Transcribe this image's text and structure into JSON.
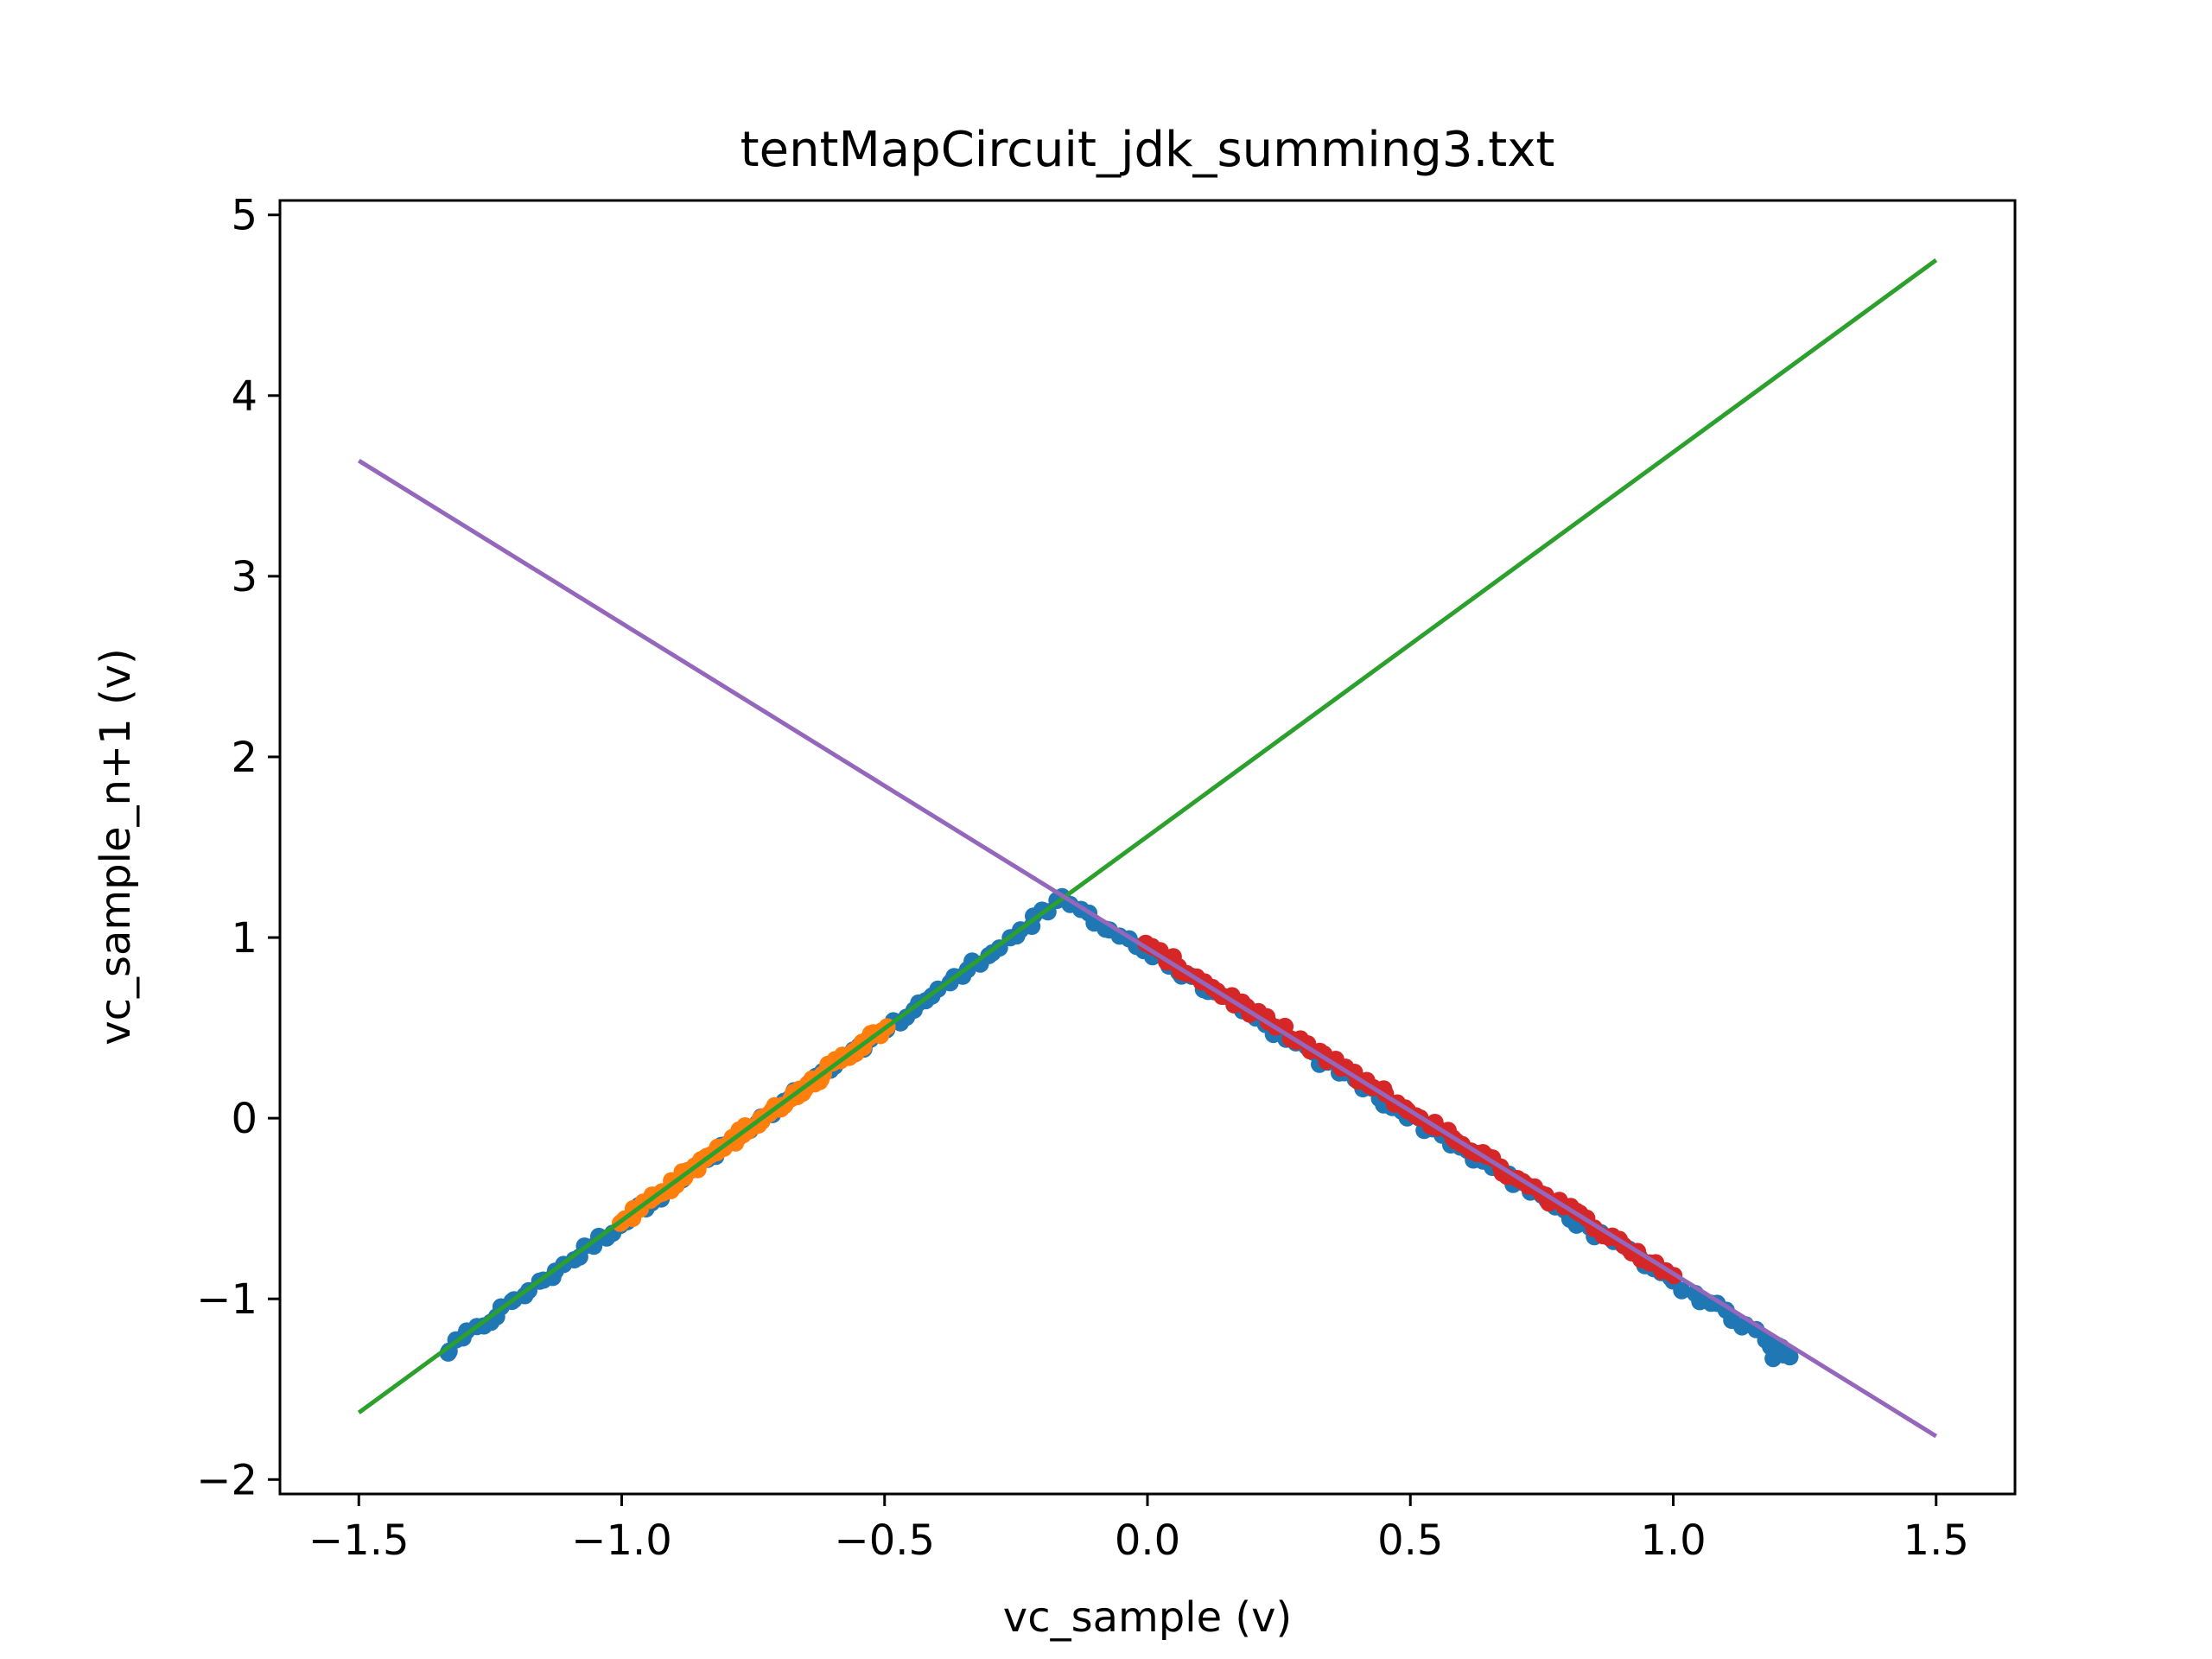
{
  "chart_data": {
    "type": "scatter",
    "title": "tentMapCircuit_jdk_summing3.txt",
    "xlabel": "vc_sample (v)",
    "ylabel": "vc_sample_n+1 (v)",
    "xlim": [
      -1.65,
      1.65
    ],
    "ylim": [
      -2.08,
      5.08
    ],
    "x_ticks": [
      -1.5,
      -1.0,
      -0.5,
      0.0,
      0.5,
      1.0,
      1.5
    ],
    "x_tick_labels": [
      "−1.5",
      "−1.0",
      "−0.5",
      "0.0",
      "0.5",
      "1.0",
      "1.5"
    ],
    "y_ticks": [
      -2,
      -1,
      0,
      1,
      2,
      3,
      4,
      5
    ],
    "y_tick_labels": [
      "−2",
      "−1",
      "0",
      "1",
      "2",
      "3",
      "4",
      "5"
    ],
    "grid": false,
    "colors": {
      "blue": "#1f77b4",
      "orange": "#ff7f0e",
      "green": "#2ca02c",
      "red": "#d62728",
      "purple": "#9467bd"
    },
    "scatter_series": [
      {
        "color": "#1f77b4",
        "segments": [
          {
            "x": [
              -1.33,
              -0.16
            ],
            "y": [
              -1.28,
              1.21
            ]
          },
          {
            "x": [
              -0.16,
              1.22
            ],
            "y": [
              1.21,
              -1.3
            ]
          }
        ],
        "extra_points": [
          {
            "x": 1.19,
            "y": -1.33
          },
          {
            "x": 1.21,
            "y": -1.31
          },
          {
            "x": 1.2,
            "y": -1.26
          },
          {
            "x": -1.33,
            "y": -1.3
          }
        ]
      },
      {
        "color": "#ff7f0e",
        "segments": [
          {
            "x": [
              -1.0,
              -0.5
            ],
            "y": [
              -0.57,
              0.5
            ]
          }
        ]
      },
      {
        "color": "#d62728",
        "segments": [
          {
            "x": [
              0.0,
              1.0
            ],
            "y": [
              0.95,
              -0.87
            ]
          }
        ]
      }
    ],
    "line_series": [
      {
        "color": "#2ca02c",
        "x": [
          -1.5,
          1.5
        ],
        "y": [
          -1.63,
          4.75
        ]
      },
      {
        "color": "#9467bd",
        "x": [
          -1.5,
          1.5
        ],
        "y": [
          3.64,
          -1.76
        ]
      }
    ]
  }
}
